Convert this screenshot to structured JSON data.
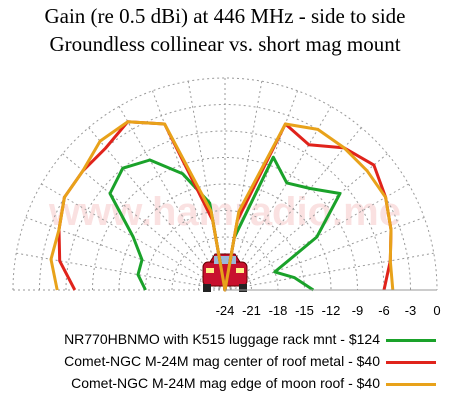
{
  "chart_data": {
    "type": "polar",
    "title": "Gain (re 0.5 dBi) at 446 MHz - side to side",
    "subtitle": "Groundless collinear vs. short mag mount",
    "watermark": "www.hamradio.me",
    "tick_labels": [
      "-24",
      "-21",
      "-18",
      "-15",
      "-12",
      "-9",
      "-6",
      "-3",
      "0"
    ],
    "rlim": [
      -24,
      0
    ],
    "grid": true,
    "series": [
      {
        "name": "NR770HBNMO with K515 luggage rack mnt - $124",
        "color": "#1aa22a",
        "points": [
          [
            0,
            -14
          ],
          [
            10,
            -16
          ],
          [
            20,
            -18
          ],
          [
            30,
            -12
          ],
          [
            40,
            -7
          ],
          [
            50,
            -9
          ],
          [
            60,
            -10
          ],
          [
            70,
            -8
          ],
          [
            80,
            -18
          ],
          [
            90,
            -24
          ],
          [
            100,
            -14
          ],
          [
            110,
            -10
          ],
          [
            120,
            -7
          ],
          [
            130,
            -6
          ],
          [
            140,
            -7
          ],
          [
            150,
            -12
          ],
          [
            160,
            -14
          ],
          [
            170,
            -14
          ],
          [
            180,
            -15
          ]
        ]
      },
      {
        "name": "Comet-NGC M-24M mag center of roof metal - $40",
        "color": "#e0231b",
        "points": [
          [
            0,
            -6
          ],
          [
            10,
            -5
          ],
          [
            20,
            -4
          ],
          [
            30,
            -3
          ],
          [
            40,
            -2
          ],
          [
            50,
            -3
          ],
          [
            60,
            -5
          ],
          [
            70,
            -4
          ],
          [
            80,
            -16
          ],
          [
            90,
            -24
          ],
          [
            100,
            -16
          ],
          [
            110,
            -4
          ],
          [
            120,
            -2
          ],
          [
            130,
            -3
          ],
          [
            140,
            -3
          ],
          [
            150,
            -3
          ],
          [
            160,
            -4
          ],
          [
            170,
            -5
          ],
          [
            180,
            -7
          ]
        ]
      },
      {
        "name": "Comet-NGC M-24M mag edge of moon roof - $40",
        "color": "#e8a21a",
        "points": [
          [
            0,
            -5
          ],
          [
            10,
            -5
          ],
          [
            20,
            -4
          ],
          [
            30,
            -3
          ],
          [
            40,
            -3
          ],
          [
            50,
            -3
          ],
          [
            60,
            -3
          ],
          [
            70,
            -4
          ],
          [
            80,
            -15
          ],
          [
            90,
            -24
          ],
          [
            100,
            -15
          ],
          [
            110,
            -4
          ],
          [
            120,
            -2
          ],
          [
            130,
            -2
          ],
          [
            140,
            -3
          ],
          [
            150,
            -3
          ],
          [
            160,
            -4
          ],
          [
            170,
            -4
          ],
          [
            180,
            -5
          ]
        ]
      }
    ]
  }
}
